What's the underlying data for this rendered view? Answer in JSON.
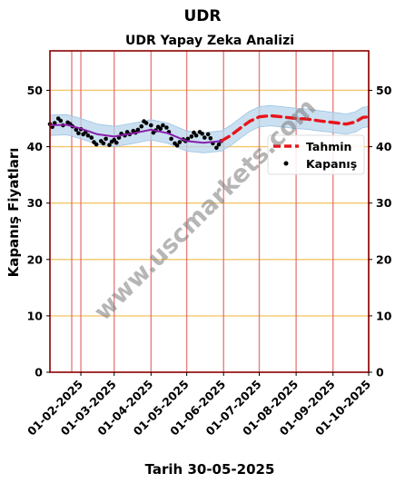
{
  "chart_data": {
    "type": "line",
    "suptitle": "UDR",
    "title": "UDR Yapay Zeka Analizi",
    "ylabel": "Kapanış Fiyatları",
    "xlabel": "Tarih 30-05-2025",
    "watermark": "www.uscmarkets.com",
    "ylim": [
      0,
      57
    ],
    "xlim": [
      "2025-01-06",
      "2025-10-01"
    ],
    "yticks": [
      0,
      10,
      20,
      30,
      40,
      50
    ],
    "xticks": [
      "01-02-2025",
      "01-03-2025",
      "01-04-2025",
      "01-05-2025",
      "01-06-2025",
      "01-07-2025",
      "01-08-2025",
      "01-09-2025",
      "01-10-2025"
    ],
    "grid": {
      "horizontal_color": "#f5c66a",
      "vertical_color": "#e36a6a"
    },
    "legend": {
      "position": "right",
      "entries": [
        "Tahmin",
        "Kapanış"
      ]
    },
    "series": [
      {
        "name": "Kapanış",
        "style": "points",
        "color": "#000000",
        "points": [
          [
            "2025-01-06",
            44.0
          ],
          [
            "2025-01-08",
            43.5
          ],
          [
            "2025-01-10",
            44.2
          ],
          [
            "2025-01-13",
            45.0
          ],
          [
            "2025-01-15",
            44.6
          ],
          [
            "2025-01-17",
            43.8
          ],
          [
            "2025-01-21",
            44.3
          ],
          [
            "2025-01-23",
            44.0
          ],
          [
            "2025-01-25",
            43.6
          ],
          [
            "2025-01-28",
            43.0
          ],
          [
            "2025-01-30",
            42.4
          ],
          [
            "2025-02-01",
            43.1
          ],
          [
            "2025-02-03",
            42.2
          ],
          [
            "2025-02-05",
            42.6
          ],
          [
            "2025-02-07",
            42.0
          ],
          [
            "2025-02-10",
            41.6
          ],
          [
            "2025-02-12",
            40.8
          ],
          [
            "2025-02-14",
            40.4
          ],
          [
            "2025-02-18",
            41.0
          ],
          [
            "2025-02-20",
            40.6
          ],
          [
            "2025-02-22",
            41.4
          ],
          [
            "2025-02-25",
            40.3
          ],
          [
            "2025-02-27",
            40.9
          ],
          [
            "2025-03-01",
            41.2
          ],
          [
            "2025-03-03",
            40.7
          ],
          [
            "2025-03-05",
            41.6
          ],
          [
            "2025-03-07",
            42.3
          ],
          [
            "2025-03-10",
            42.0
          ],
          [
            "2025-03-12",
            42.6
          ],
          [
            "2025-03-14",
            42.2
          ],
          [
            "2025-03-17",
            42.8
          ],
          [
            "2025-03-19",
            42.5
          ],
          [
            "2025-03-21",
            43.0
          ],
          [
            "2025-03-24",
            43.6
          ],
          [
            "2025-03-26",
            44.5
          ],
          [
            "2025-03-28",
            44.2
          ],
          [
            "2025-04-01",
            43.8
          ],
          [
            "2025-04-03",
            42.5
          ],
          [
            "2025-04-05",
            42.9
          ],
          [
            "2025-04-07",
            43.5
          ],
          [
            "2025-04-09",
            43.2
          ],
          [
            "2025-04-11",
            43.8
          ],
          [
            "2025-04-14",
            43.4
          ],
          [
            "2025-04-16",
            42.6
          ],
          [
            "2025-04-18",
            41.4
          ],
          [
            "2025-04-21",
            40.6
          ],
          [
            "2025-04-23",
            40.2
          ],
          [
            "2025-04-25",
            40.8
          ],
          [
            "2025-04-28",
            41.3
          ],
          [
            "2025-04-30",
            41.0
          ],
          [
            "2025-05-02",
            41.4
          ],
          [
            "2025-05-05",
            41.8
          ],
          [
            "2025-05-07",
            42.5
          ],
          [
            "2025-05-09",
            42.0
          ],
          [
            "2025-05-12",
            42.6
          ],
          [
            "2025-05-14",
            42.3
          ],
          [
            "2025-05-16",
            41.6
          ],
          [
            "2025-05-19",
            42.2
          ],
          [
            "2025-05-21",
            41.5
          ],
          [
            "2025-05-23",
            40.6
          ],
          [
            "2025-05-26",
            39.8
          ],
          [
            "2025-05-28",
            40.4
          ],
          [
            "2025-05-30",
            41.0
          ]
        ]
      },
      {
        "name": "Tahmin",
        "style": "dashed",
        "color": "#e8141b",
        "points": [
          [
            "2025-05-30",
            41.0
          ],
          [
            "2025-06-07",
            42.0
          ],
          [
            "2025-06-15",
            43.3
          ],
          [
            "2025-06-23",
            44.5
          ],
          [
            "2025-07-01",
            45.3
          ],
          [
            "2025-07-10",
            45.5
          ],
          [
            "2025-07-20",
            45.3
          ],
          [
            "2025-08-01",
            45.0
          ],
          [
            "2025-08-10",
            44.9
          ],
          [
            "2025-08-20",
            44.6
          ],
          [
            "2025-08-28",
            44.4
          ],
          [
            "2025-09-05",
            44.2
          ],
          [
            "2025-09-12",
            44.0
          ],
          [
            "2025-09-20",
            44.4
          ],
          [
            "2025-09-26",
            45.2
          ],
          [
            "2025-10-01",
            45.3
          ]
        ]
      },
      {
        "name": "",
        "style": "trend",
        "color": "#8a1fa8",
        "points": [
          [
            "2025-01-06",
            43.8
          ],
          [
            "2025-01-20",
            43.9
          ],
          [
            "2025-02-01",
            43.2
          ],
          [
            "2025-02-15",
            42.2
          ],
          [
            "2025-03-01",
            41.8
          ],
          [
            "2025-03-15",
            42.3
          ],
          [
            "2025-04-01",
            43.0
          ],
          [
            "2025-04-15",
            42.4
          ],
          [
            "2025-05-01",
            41.0
          ],
          [
            "2025-05-15",
            40.7
          ],
          [
            "2025-05-30",
            41.0
          ]
        ]
      }
    ],
    "band": {
      "color": "#b8d6ec",
      "center": [
        [
          "2025-01-06",
          43.8
        ],
        [
          "2025-01-20",
          43.9
        ],
        [
          "2025-02-01",
          43.2
        ],
        [
          "2025-02-15",
          42.2
        ],
        [
          "2025-03-01",
          41.8
        ],
        [
          "2025-03-15",
          42.3
        ],
        [
          "2025-04-01",
          43.0
        ],
        [
          "2025-04-15",
          42.4
        ],
        [
          "2025-05-01",
          41.0
        ],
        [
          "2025-05-15",
          40.7
        ],
        [
          "2025-05-30",
          41.0
        ],
        [
          "2025-06-07",
          42.0
        ],
        [
          "2025-06-15",
          43.3
        ],
        [
          "2025-06-23",
          44.5
        ],
        [
          "2025-07-01",
          45.3
        ],
        [
          "2025-07-10",
          45.5
        ],
        [
          "2025-07-20",
          45.3
        ],
        [
          "2025-08-01",
          45.0
        ],
        [
          "2025-08-10",
          44.9
        ],
        [
          "2025-08-20",
          44.6
        ],
        [
          "2025-08-28",
          44.4
        ],
        [
          "2025-09-05",
          44.2
        ],
        [
          "2025-09-12",
          44.0
        ],
        [
          "2025-09-20",
          44.4
        ],
        [
          "2025-09-26",
          45.2
        ],
        [
          "2025-10-01",
          45.3
        ]
      ],
      "width": 1.8
    }
  }
}
